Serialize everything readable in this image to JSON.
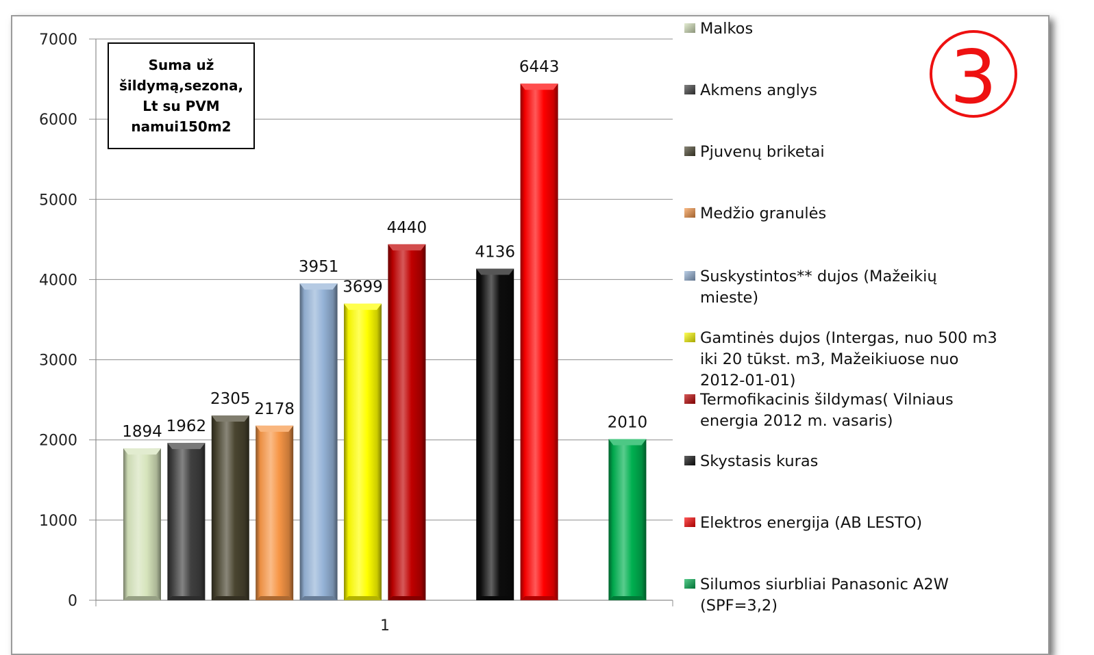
{
  "badge": {
    "text": "3",
    "color": "#ee1111"
  },
  "chart_data": {
    "type": "bar",
    "title": "Suma už\nšildymą,sezona,\nLt su PVM\nnamui150m2",
    "xlabel": "",
    "ylabel": "",
    "categories": [
      "1"
    ],
    "ylim": [
      0,
      7000
    ],
    "yticks": [
      "0",
      "1000",
      "2000",
      "3000",
      "4000",
      "5000",
      "6000",
      "7000"
    ],
    "grid": true,
    "legend_position": "right",
    "series": [
      {
        "name": "Malkos",
        "value": 1894,
        "label": "1894",
        "color": "#d6e4bc"
      },
      {
        "name": "Akmens anglys",
        "value": 1962,
        "label": "1962",
        "color": "#404040"
      },
      {
        "name": "Pjuvenų briketai",
        "value": 2305,
        "label": "2305",
        "color": "#4a4530"
      },
      {
        "name": "Medžio granulės",
        "value": 2178,
        "label": "2178",
        "color": "#f79646"
      },
      {
        "name": "Suskystintos** dujos (Mažeikių mieste)",
        "value": 3951,
        "label": "3951",
        "color": "#95b3d7"
      },
      {
        "name": "Gamtinės dujos (Intergas, nuo 500 m3 iki 20 tūkst. m3, Mažeikiuose nuo 2012-01-01)",
        "value": 3699,
        "label": "3699",
        "color": "#ffff00"
      },
      {
        "name": "Termofikacinis šildymas( Vilniaus energia 2012 m. vasaris)",
        "value": 4440,
        "label": "4440",
        "color": "#c00000"
      },
      {
        "name": "Skystasis kuras",
        "value": 4136,
        "label": "4136",
        "color": "#0d0d0d"
      },
      {
        "name": "Elektros energija (AB LESTO)",
        "value": 6443,
        "label": "6443",
        "color": "#ff0000"
      },
      {
        "name": "Silumos siurbliai Panasonic A2W (SPF=3,2)",
        "value": 2010,
        "label": "2010",
        "color": "#00b050"
      }
    ]
  }
}
